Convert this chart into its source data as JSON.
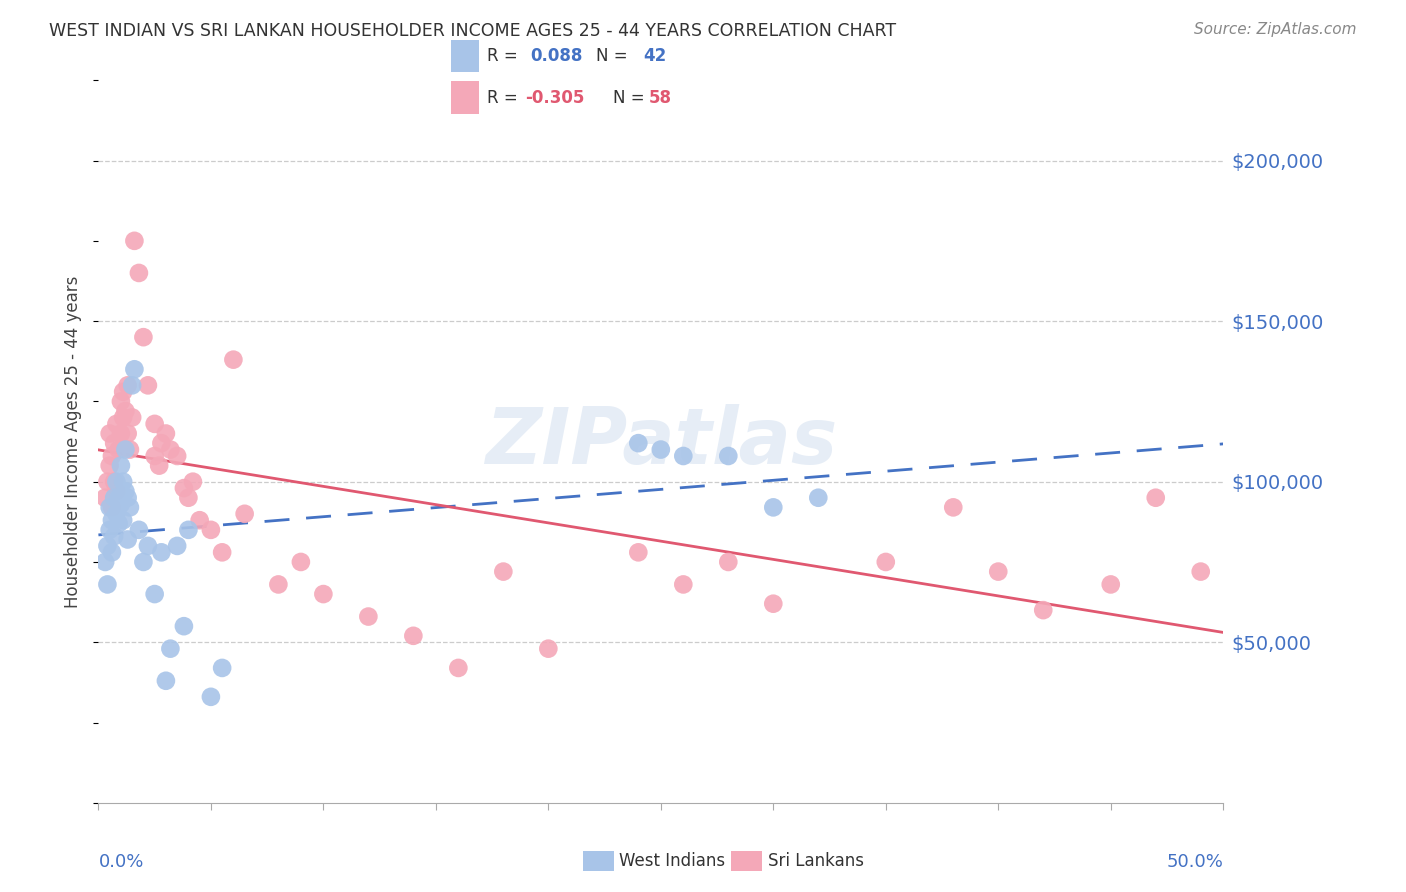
{
  "title": "WEST INDIAN VS SRI LANKAN HOUSEHOLDER INCOME AGES 25 - 44 YEARS CORRELATION CHART",
  "source": "Source: ZipAtlas.com",
  "ylabel": "Householder Income Ages 25 - 44 years",
  "ytick_labels": [
    "$50,000",
    "$100,000",
    "$150,000",
    "$200,000"
  ],
  "ytick_values": [
    50000,
    100000,
    150000,
    200000
  ],
  "ymin": 0,
  "ymax": 225000,
  "xmin": 0.0,
  "xmax": 0.5,
  "legend_blue_r": "0.088",
  "legend_blue_n": "42",
  "legend_pink_r": "-0.305",
  "legend_pink_n": "58",
  "blue_color": "#a8c4e8",
  "pink_color": "#f4a8b8",
  "blue_line_color": "#4472c4",
  "pink_line_color": "#e05870",
  "title_color": "#333333",
  "source_color": "#888888",
  "axis_label_color": "#4472c4",
  "watermark": "ZIPatlas",
  "west_indians_x": [
    0.003,
    0.004,
    0.004,
    0.005,
    0.005,
    0.006,
    0.006,
    0.007,
    0.007,
    0.008,
    0.008,
    0.009,
    0.009,
    0.01,
    0.01,
    0.011,
    0.011,
    0.012,
    0.012,
    0.013,
    0.013,
    0.014,
    0.015,
    0.016,
    0.018,
    0.02,
    0.022,
    0.025,
    0.028,
    0.03,
    0.032,
    0.035,
    0.038,
    0.04,
    0.05,
    0.055,
    0.24,
    0.25,
    0.26,
    0.28,
    0.3,
    0.32
  ],
  "west_indians_y": [
    75000,
    68000,
    80000,
    85000,
    92000,
    78000,
    88000,
    95000,
    83000,
    90000,
    100000,
    87000,
    95000,
    93000,
    105000,
    88000,
    100000,
    97000,
    110000,
    82000,
    95000,
    92000,
    130000,
    135000,
    85000,
    75000,
    80000,
    65000,
    78000,
    38000,
    48000,
    80000,
    55000,
    85000,
    33000,
    42000,
    112000,
    110000,
    108000,
    108000,
    92000,
    95000
  ],
  "sri_lankans_x": [
    0.003,
    0.004,
    0.005,
    0.005,
    0.006,
    0.006,
    0.007,
    0.007,
    0.008,
    0.008,
    0.009,
    0.01,
    0.01,
    0.011,
    0.011,
    0.012,
    0.013,
    0.013,
    0.014,
    0.015,
    0.016,
    0.018,
    0.02,
    0.022,
    0.025,
    0.025,
    0.027,
    0.028,
    0.03,
    0.032,
    0.035,
    0.038,
    0.04,
    0.042,
    0.045,
    0.05,
    0.055,
    0.06,
    0.065,
    0.08,
    0.09,
    0.1,
    0.12,
    0.14,
    0.16,
    0.18,
    0.2,
    0.24,
    0.26,
    0.28,
    0.3,
    0.35,
    0.38,
    0.4,
    0.42,
    0.45,
    0.47,
    0.49
  ],
  "sri_lankans_y": [
    95000,
    100000,
    105000,
    115000,
    92000,
    108000,
    100000,
    112000,
    97000,
    118000,
    110000,
    115000,
    125000,
    120000,
    128000,
    122000,
    115000,
    130000,
    110000,
    120000,
    175000,
    165000,
    145000,
    130000,
    118000,
    108000,
    105000,
    112000,
    115000,
    110000,
    108000,
    98000,
    95000,
    100000,
    88000,
    85000,
    78000,
    138000,
    90000,
    68000,
    75000,
    65000,
    58000,
    52000,
    42000,
    72000,
    48000,
    78000,
    68000,
    75000,
    62000,
    75000,
    92000,
    72000,
    60000,
    68000,
    95000,
    72000
  ]
}
